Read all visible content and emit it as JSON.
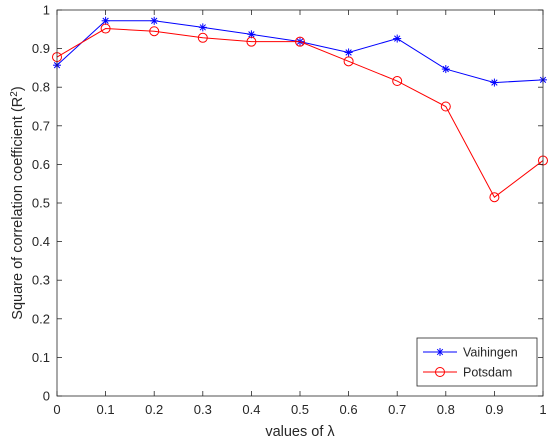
{
  "chart_data": {
    "type": "line",
    "xlabel": "values of λ",
    "ylabel_main": "Square of correlation coefficient (R",
    "ylabel_sup": "2",
    "ylabel_end": ")",
    "xlim": [
      0,
      1
    ],
    "ylim": [
      0,
      1
    ],
    "x": [
      0,
      0.1,
      0.2,
      0.3,
      0.4,
      0.5,
      0.6,
      0.7,
      0.8,
      0.9,
      1
    ],
    "xticks": [
      "0",
      "0.1",
      "0.2",
      "0.3",
      "0.4",
      "0.5",
      "0.6",
      "0.7",
      "0.8",
      "0.9",
      "1"
    ],
    "yticks": [
      "0",
      "0.1",
      "0.2",
      "0.3",
      "0.4",
      "0.5",
      "0.6",
      "0.7",
      "0.8",
      "0.9",
      "1"
    ],
    "grid": false,
    "legend_position": "bottom-right",
    "series": [
      {
        "name": "Vaihingen",
        "color": "#0000ff",
        "marker": "asterisk",
        "values": [
          0.857,
          0.972,
          0.972,
          0.955,
          0.937,
          0.918,
          0.89,
          0.926,
          0.847,
          0.812,
          0.819
        ]
      },
      {
        "name": "Potsdam",
        "color": "#ff0000",
        "marker": "circle",
        "values": [
          0.878,
          0.952,
          0.945,
          0.928,
          0.918,
          0.918,
          0.867,
          0.816,
          0.75,
          0.515,
          0.61
        ]
      }
    ]
  }
}
